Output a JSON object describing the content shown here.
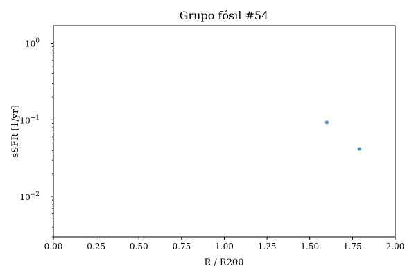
{
  "chart_data": {
    "type": "scatter",
    "title": "Grupo fósil #54",
    "xlabel": "R / R200",
    "ylabel": "sSFR [1/yr]",
    "xlim": [
      0,
      2
    ],
    "ylim": [
      0.003,
      1.7
    ],
    "yscale": "log",
    "grid": false,
    "legend": "none",
    "marker_color": "#4682b4",
    "x_ticks": [
      {
        "value": 0.0,
        "label": "0.00"
      },
      {
        "value": 0.25,
        "label": "0.25"
      },
      {
        "value": 0.5,
        "label": "0.50"
      },
      {
        "value": 0.75,
        "label": "0.75"
      },
      {
        "value": 1.0,
        "label": "1.00"
      },
      {
        "value": 1.25,
        "label": "1.25"
      },
      {
        "value": 1.5,
        "label": "1.50"
      },
      {
        "value": 1.75,
        "label": "1.75"
      },
      {
        "value": 2.0,
        "label": "2.00"
      }
    ],
    "y_ticks": [
      {
        "value": 1,
        "base": "10",
        "exp": "0"
      },
      {
        "value": 0.1,
        "base": "10",
        "exp": "−1"
      },
      {
        "value": 0.01,
        "base": "10",
        "exp": "−2"
      }
    ],
    "points": [
      {
        "x": 1.6,
        "y": 0.093
      },
      {
        "x": 1.79,
        "y": 0.042
      }
    ]
  }
}
